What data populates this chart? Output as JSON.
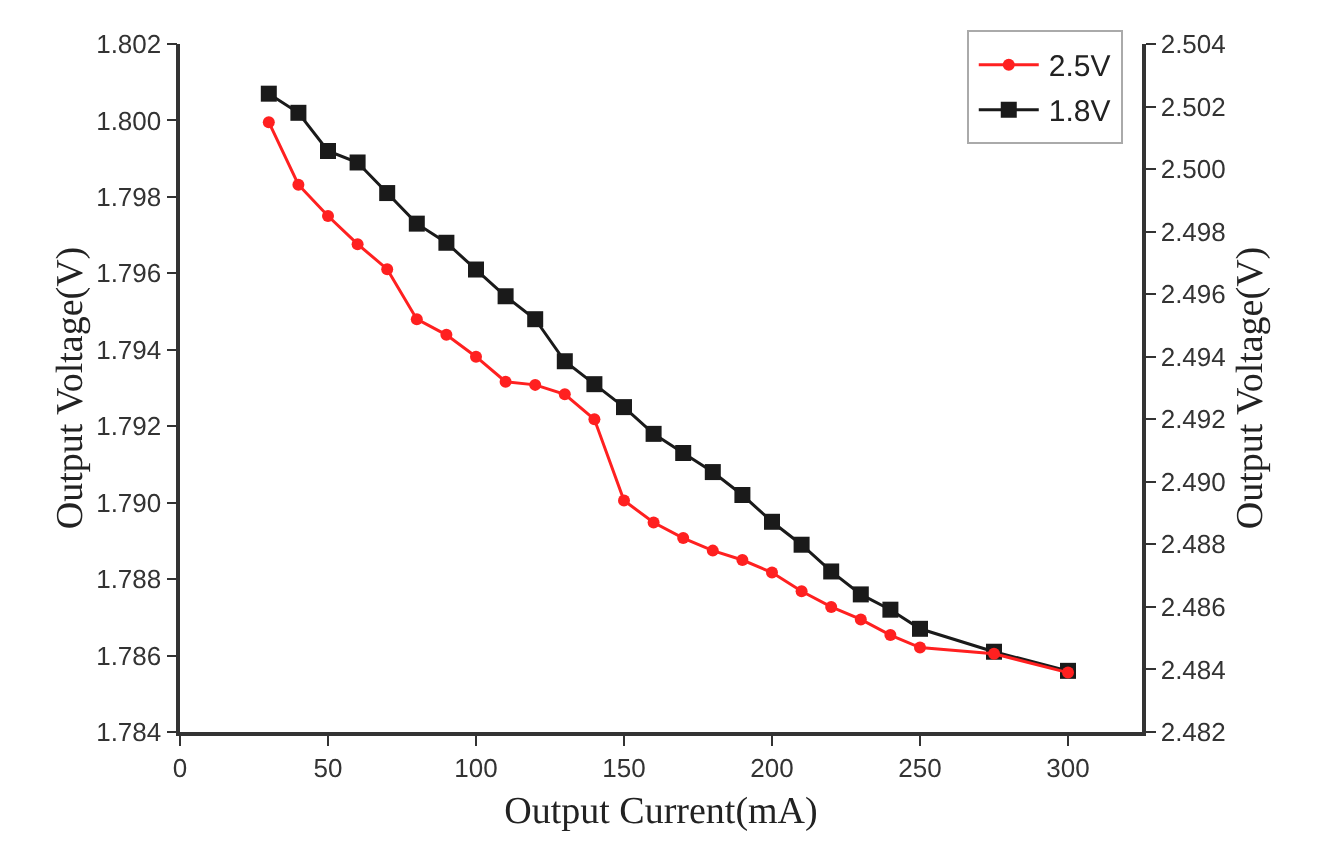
{
  "chart_data": {
    "type": "line",
    "xlabel": "Output Current(mA)",
    "ylabel": "Output Voltage(V)",
    "y2label": "Output Voltage(V)",
    "x": [
      30,
      40,
      50,
      60,
      70,
      80,
      90,
      100,
      110,
      120,
      130,
      140,
      150,
      160,
      170,
      180,
      190,
      200,
      210,
      220,
      230,
      240,
      250,
      275,
      300
    ],
    "series": [
      {
        "name": "2.5V",
        "color": "#ff2020",
        "axis": "y2",
        "marker": "circle",
        "values": [
          2.5015,
          2.4995,
          2.4985,
          2.4976,
          2.4968,
          2.4952,
          2.4947,
          2.494,
          2.4932,
          2.4931,
          2.4928,
          2.492,
          2.4894,
          2.4887,
          2.4882,
          2.4878,
          2.4875,
          2.4871,
          2.4865,
          2.486,
          2.4856,
          2.4851,
          2.4847,
          2.4845,
          2.4839
        ]
      },
      {
        "name": "1.8V",
        "color": "#1a1a1a",
        "axis": "y",
        "marker": "square",
        "values": [
          1.8007,
          1.8002,
          1.7992,
          1.7989,
          1.7981,
          1.7973,
          1.7968,
          1.7961,
          1.7954,
          1.7948,
          1.7937,
          1.7931,
          1.7925,
          1.7918,
          1.7913,
          1.7908,
          1.7902,
          1.7895,
          1.7889,
          1.7882,
          1.7876,
          1.7872,
          1.7867,
          1.7861,
          1.7856
        ]
      }
    ],
    "xlim": [
      0,
      325
    ],
    "xticks": [
      0,
      50,
      100,
      150,
      200,
      250,
      300
    ],
    "ylim": [
      1.784,
      1.802
    ],
    "yticks": [
      1.784,
      1.786,
      1.788,
      {
        "value": 1.79,
        "label": "1.790"
      },
      1.792,
      1.794,
      1.796,
      1.798,
      {
        "value": 1.8,
        "label": "1.800"
      },
      1.802
    ],
    "y2lim": [
      2.482,
      2.504
    ],
    "y2ticks": [
      2.482,
      2.484,
      2.486,
      2.488,
      {
        "value": 2.49,
        "label": "2.490"
      },
      2.492,
      2.494,
      2.496,
      2.498,
      {
        "value": 2.5,
        "label": "2.500"
      },
      2.502,
      2.504
    ],
    "legend": "top right",
    "grid": false,
    "line_style": "solid"
  }
}
